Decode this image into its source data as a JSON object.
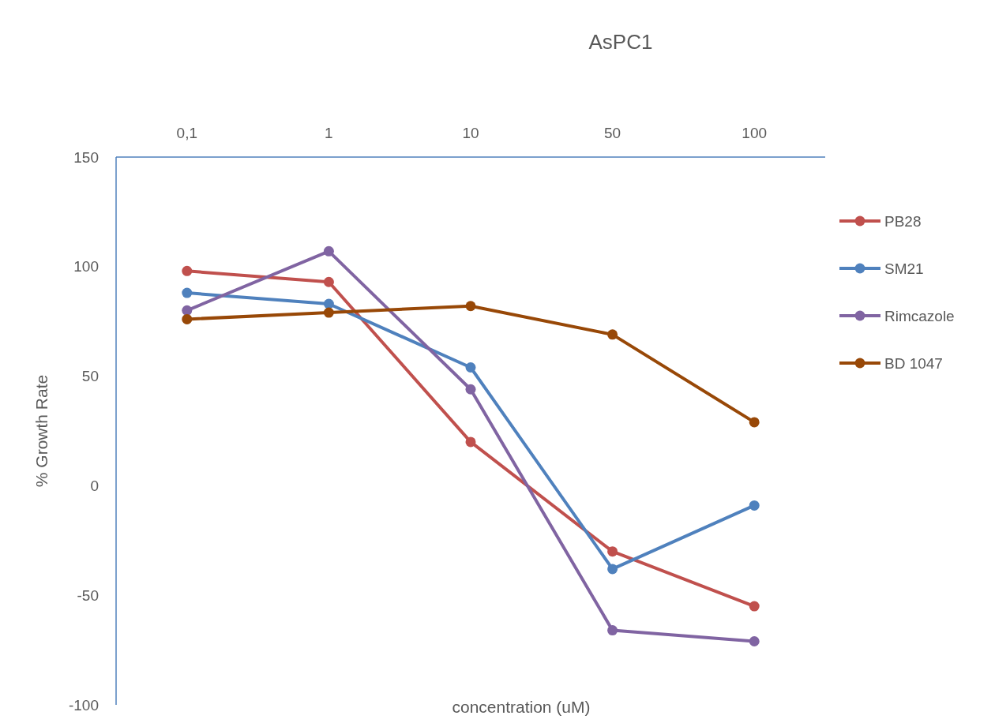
{
  "chart_data": {
    "type": "line",
    "title": "AsPC1",
    "xlabel": "concentration (uM)",
    "ylabel": "% Growth Rate",
    "categories": [
      "0,1",
      "1",
      "10",
      "50",
      "100"
    ],
    "ylim": [
      -100,
      150
    ],
    "yticks": [
      -100,
      -50,
      0,
      50,
      100,
      150
    ],
    "grid": false,
    "legend": "right",
    "marker": "circle",
    "line_style": "solid",
    "series": [
      {
        "name": "PB28",
        "color": "#c0504d",
        "values": [
          98,
          93,
          20,
          -30,
          -55
        ]
      },
      {
        "name": "SM21",
        "color": "#4f81bd",
        "values": [
          88,
          83,
          54,
          -38,
          -9
        ]
      },
      {
        "name": "Rimcazole",
        "color": "#8064a2",
        "values": [
          80,
          107,
          44,
          -66,
          -71
        ]
      },
      {
        "name": "BD 1047",
        "color": "#984807",
        "values": [
          76,
          79,
          82,
          69,
          29
        ]
      }
    ]
  }
}
